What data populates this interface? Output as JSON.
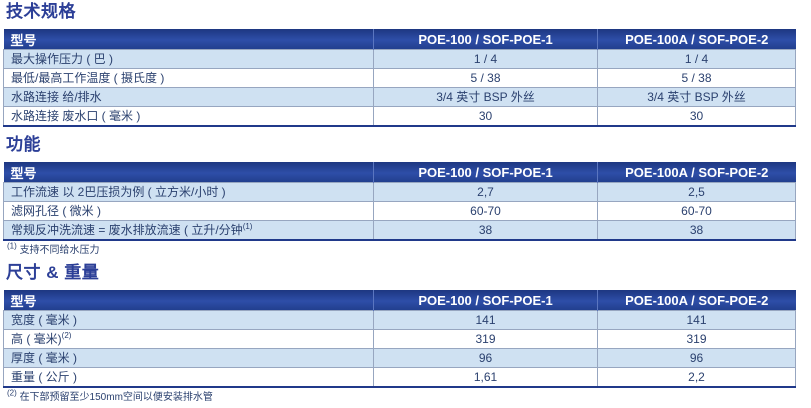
{
  "colors": {
    "header_bg": "#26418F",
    "row_alt_bg": "#CFE1F2",
    "row_bg": "#FFFFFF",
    "border": "#97A6C0",
    "table_bottom_border": "#20398A",
    "title_text": "#2C3F97",
    "body_text": "#2B416F",
    "header_text": "#FFFFFF"
  },
  "sections": [
    {
      "title": "技术规格",
      "header": {
        "model": "型号",
        "col1": "POE-100 / SOF-POE-1",
        "col2": "POE-100A / SOF-POE-2"
      },
      "rows": [
        {
          "label": "最大操作压力 ( 巴 )",
          "v1": "1 / 4",
          "v2": "1 / 4"
        },
        {
          "label": "最低/最高工作温度 ( 摄氏度 )",
          "v1": "5 / 38",
          "v2": "5 / 38"
        },
        {
          "label": "水路连接 给/排水",
          "v1": "3/4 英寸 BSP 外丝",
          "v2": "3/4 英寸 BSP 外丝"
        },
        {
          "label": "水路连接 废水口 ( 毫米 )",
          "v1": "30",
          "v2": "30"
        }
      ]
    },
    {
      "title": "功能",
      "header": {
        "model": "型号",
        "col1": "POE-100 / SOF-POE-1",
        "col2": "POE-100A / SOF-POE-2"
      },
      "rows": [
        {
          "label": "工作流速 以 2巴压损为例 ( 立方米/小时 )",
          "v1": "2,7",
          "v2": "2,5"
        },
        {
          "label": "滤网孔径 ( 微米 )",
          "v1": "60-70",
          "v2": "60-70"
        },
        {
          "label": "常规反冲洗流速 = 废水排放流速 ( 立升/分钟",
          "label_sup": "(1)",
          "v1": "38",
          "v2": "38"
        }
      ],
      "footnote": {
        "marker": "(1)",
        "text": "支持不同给水压力"
      }
    },
    {
      "title": "尺寸 & 重量",
      "header": {
        "model": "型号",
        "col1": "POE-100 / SOF-POE-1",
        "col2": "POE-100A / SOF-POE-2"
      },
      "rows": [
        {
          "label": "宽度 ( 毫米 )",
          "v1": "141",
          "v2": "141"
        },
        {
          "label": "高 ( 毫米)",
          "label_sup": "(2)",
          "v1": "319",
          "v2": "319"
        },
        {
          "label": "厚度 ( 毫米 )",
          "v1": "96",
          "v2": "96"
        },
        {
          "label": "重量 ( 公斤 )",
          "v1": "1,61",
          "v2": "2,2"
        }
      ],
      "footnote": {
        "marker": "(2)",
        "text": "在下部预留至少150mm空间以便安装排水管"
      }
    }
  ]
}
